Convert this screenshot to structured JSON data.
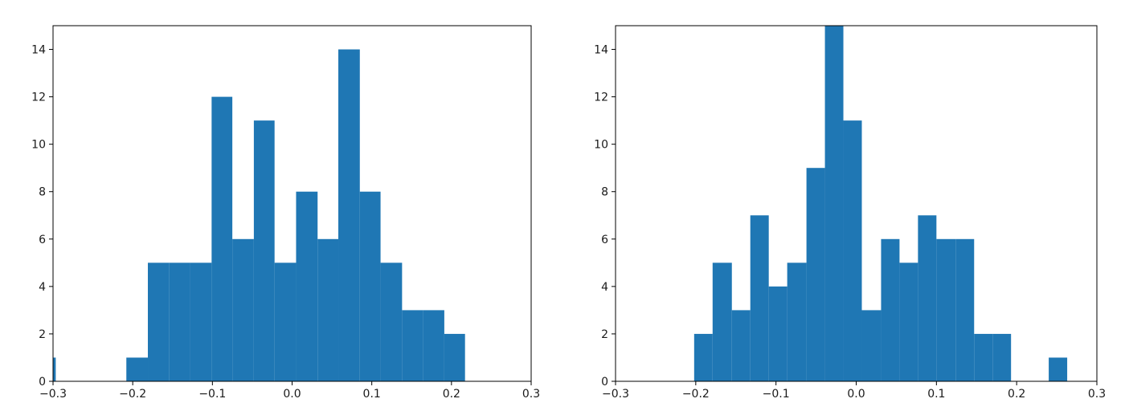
{
  "chart_data": [
    {
      "type": "bar",
      "title": "",
      "xlabel": "",
      "ylabel": "",
      "xlim": [
        -0.3,
        0.3
      ],
      "ylim": [
        0,
        15
      ],
      "xticks": [
        -0.3,
        -0.2,
        -0.1,
        0.0,
        0.1,
        0.2,
        0.3
      ],
      "xtick_labels": [
        "−0.3",
        "−0.2",
        "−0.1",
        "0.0",
        "0.1",
        "0.2",
        "0.3"
      ],
      "yticks": [
        0,
        2,
        4,
        6,
        8,
        10,
        12,
        14
      ],
      "ytick_labels": [
        "0",
        "2",
        "4",
        "6",
        "8",
        "10",
        "12",
        "14"
      ],
      "color": "#1f77b4",
      "grid": false,
      "bins": [
        {
          "x0": -0.3,
          "x1": -0.2966,
          "count": 1
        },
        {
          "x0": -0.2966,
          "x1": -0.27,
          "count": 0
        },
        {
          "x0": -0.27,
          "x1": -0.2375,
          "count": 0
        },
        {
          "x0": -0.2375,
          "x1": -0.208,
          "count": 0
        },
        {
          "x0": -0.208,
          "x1": -0.181,
          "count": 1
        },
        {
          "x0": -0.181,
          "x1": -0.154,
          "count": 5
        },
        {
          "x0": -0.154,
          "x1": -0.128,
          "count": 5
        },
        {
          "x0": -0.128,
          "x1": -0.101,
          "count": 5
        },
        {
          "x0": -0.101,
          "x1": -0.075,
          "count": 12
        },
        {
          "x0": -0.075,
          "x1": -0.048,
          "count": 6
        },
        {
          "x0": -0.048,
          "x1": -0.022,
          "count": 11
        },
        {
          "x0": -0.022,
          "x1": 0.005,
          "count": 5
        },
        {
          "x0": 0.005,
          "x1": 0.032,
          "count": 8
        },
        {
          "x0": 0.032,
          "x1": 0.058,
          "count": 6
        },
        {
          "x0": 0.058,
          "x1": 0.085,
          "count": 14
        },
        {
          "x0": 0.085,
          "x1": 0.111,
          "count": 8
        },
        {
          "x0": 0.111,
          "x1": 0.138,
          "count": 5
        },
        {
          "x0": 0.138,
          "x1": 0.164,
          "count": 3
        },
        {
          "x0": 0.164,
          "x1": 0.191,
          "count": 3
        },
        {
          "x0": 0.191,
          "x1": 0.217,
          "count": 2
        }
      ]
    },
    {
      "type": "bar",
      "title": "",
      "xlabel": "",
      "ylabel": "",
      "xlim": [
        -0.3,
        0.3
      ],
      "ylim": [
        0,
        15
      ],
      "xticks": [
        -0.3,
        -0.2,
        -0.1,
        0.0,
        0.1,
        0.2,
        0.3
      ],
      "xtick_labels": [
        "−0.3",
        "−0.2",
        "−0.1",
        "0.0",
        "0.1",
        "0.2",
        "0.3"
      ],
      "yticks": [
        0,
        2,
        4,
        6,
        8,
        10,
        12,
        14
      ],
      "ytick_labels": [
        "0",
        "2",
        "4",
        "6",
        "8",
        "10",
        "12",
        "14"
      ],
      "color": "#1f77b4",
      "grid": false,
      "bins": [
        {
          "x0": -0.202,
          "x1": -0.179,
          "count": 2
        },
        {
          "x0": -0.179,
          "x1": -0.155,
          "count": 5
        },
        {
          "x0": -0.155,
          "x1": -0.132,
          "count": 3
        },
        {
          "x0": -0.132,
          "x1": -0.109,
          "count": 7
        },
        {
          "x0": -0.109,
          "x1": -0.086,
          "count": 4
        },
        {
          "x0": -0.086,
          "x1": -0.062,
          "count": 5
        },
        {
          "x0": -0.062,
          "x1": -0.039,
          "count": 9
        },
        {
          "x0": -0.039,
          "x1": -0.016,
          "count": 15
        },
        {
          "x0": -0.016,
          "x1": 0.007,
          "count": 11
        },
        {
          "x0": 0.007,
          "x1": 0.031,
          "count": 3
        },
        {
          "x0": 0.031,
          "x1": 0.054,
          "count": 6
        },
        {
          "x0": 0.054,
          "x1": 0.077,
          "count": 5
        },
        {
          "x0": 0.077,
          "x1": 0.1,
          "count": 7
        },
        {
          "x0": 0.1,
          "x1": 0.124,
          "count": 6
        },
        {
          "x0": 0.124,
          "x1": 0.147,
          "count": 6
        },
        {
          "x0": 0.147,
          "x1": 0.17,
          "count": 2
        },
        {
          "x0": 0.17,
          "x1": 0.193,
          "count": 2
        },
        {
          "x0": 0.193,
          "x1": 0.217,
          "count": 0
        },
        {
          "x0": 0.217,
          "x1": 0.24,
          "count": 0
        },
        {
          "x0": 0.24,
          "x1": 0.263,
          "count": 1
        }
      ]
    }
  ]
}
